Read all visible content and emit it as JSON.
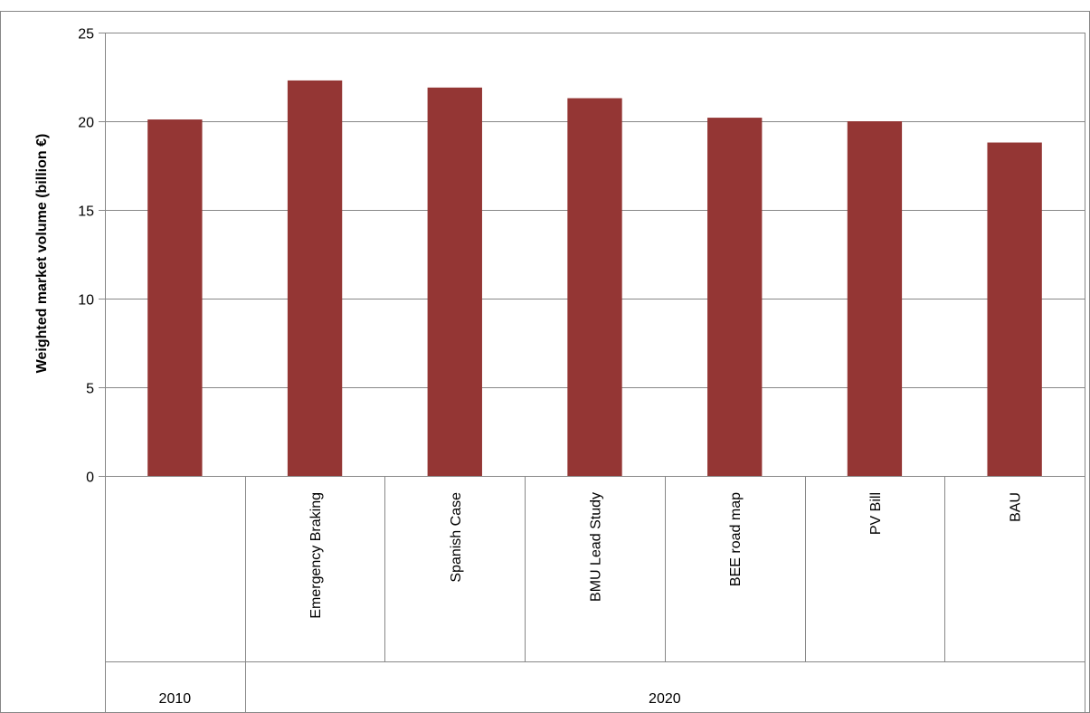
{
  "chart_data": {
    "type": "bar",
    "title": "",
    "xlabel": "",
    "ylabel": "Weighted  market volume (billion €)",
    "ylim": [
      0,
      25
    ],
    "yticks": [
      0,
      5,
      10,
      15,
      20,
      25
    ],
    "grid": true,
    "legend": "none",
    "bar_color": "#943634",
    "categories": [
      "",
      "Emergency Braking",
      "Spanish Case",
      "BMU Lead Study",
      "BEE road map",
      "PV Bill",
      "BAU"
    ],
    "groups": [
      {
        "label": "2010",
        "span": 1
      },
      {
        "label": "2020",
        "span": 6
      }
    ],
    "values": [
      20.1,
      22.3,
      21.9,
      21.3,
      20.2,
      20.0,
      18.8
    ]
  }
}
